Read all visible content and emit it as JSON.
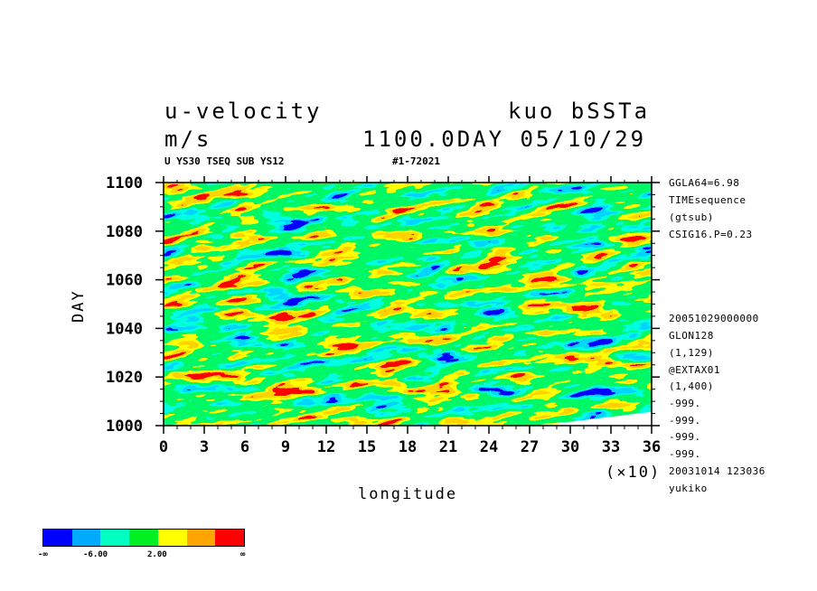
{
  "header": {
    "title_left": "u-velocity",
    "units": "m/s",
    "title_right": "kuo bSSTa",
    "subtitle_right": "1100.0DAY 05/10/29",
    "tag_left": "U YS30 TSEQ SUB YS12",
    "tag_right": "#1-72021"
  },
  "side_info": [
    "GGLA64=6.98",
    "TIMEsequence",
    "(gtsub)",
    "CSIG16.P=0.23",
    "20051029000000",
    "GLON128",
    "(1,129)",
    "@EXTAX01",
    "(1,400)",
    "-999.",
    "-999.",
    "-999.",
    "-999.",
    "20031014 123036",
    "yukiko"
  ],
  "colorbar": {
    "colors": [
      "#0000ff",
      "#00aaff",
      "#00ffc0",
      "#00ee22",
      "#ffff00",
      "#ffa500",
      "#ff0000"
    ],
    "labels": [
      "-∞",
      "-6.00",
      "2.00",
      "∞"
    ]
  },
  "chart_data": {
    "type": "heatmap",
    "xlabel": "longitude",
    "ylabel": "DAY",
    "x_multiplier_label": "(×10)",
    "xlim": [
      0,
      36
    ],
    "ylim": [
      1000,
      1100
    ],
    "x_ticks": [
      "0",
      "3",
      "6",
      "9",
      "12",
      "15",
      "18",
      "21",
      "24",
      "27",
      "30",
      "33",
      "36"
    ],
    "y_ticks": [
      "1000",
      "1020",
      "1040",
      "1060",
      "1080",
      "1100"
    ],
    "color_levels": [
      "-∞",
      "-6.00",
      "2.00",
      "∞"
    ]
  }
}
